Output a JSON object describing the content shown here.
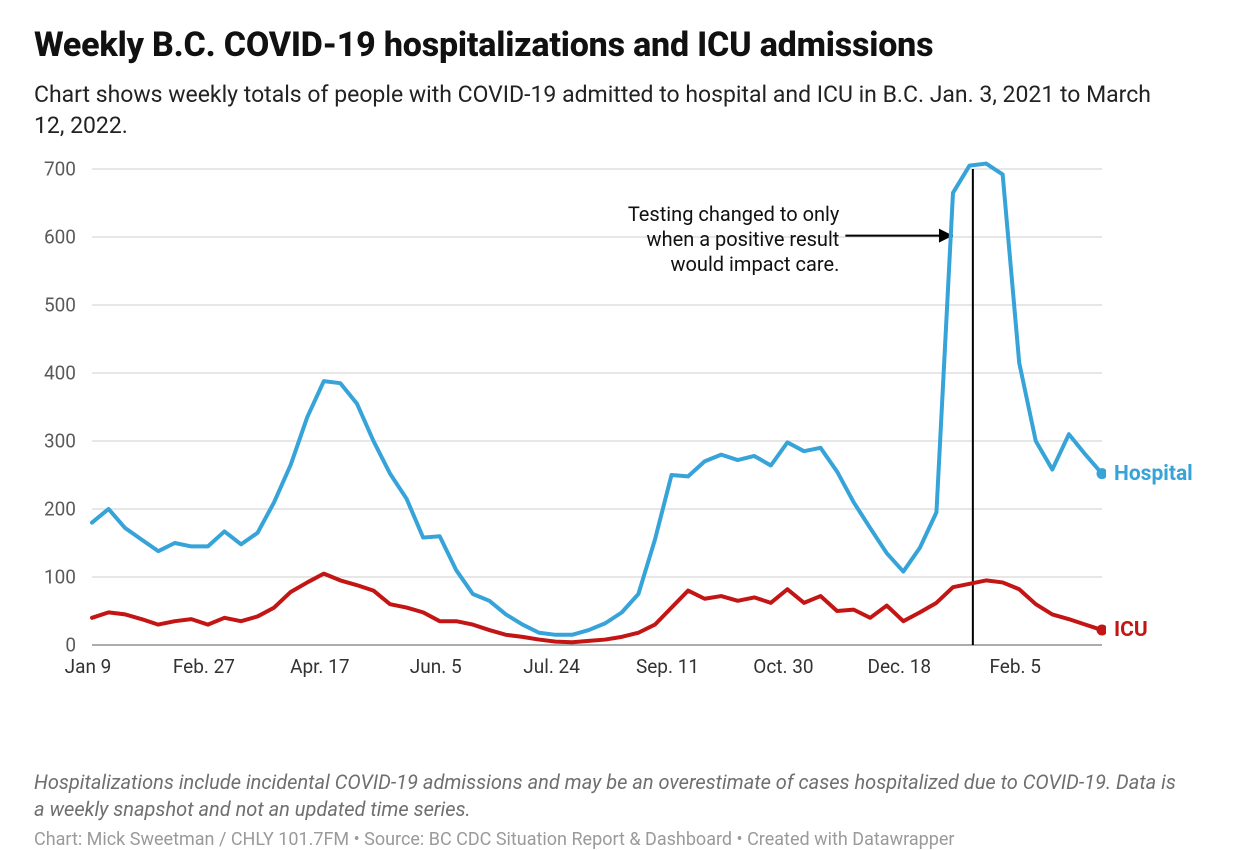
{
  "title": "Weekly B.C. COVID-19 hospitalizations and ICU admissions",
  "subtitle": "Chart shows weekly totals of people with COVID-19 admitted to hospital and ICU in B.C. Jan. 3, 2021 to March 12, 2022.",
  "footnote": "Hospitalizations include incidental COVID-19 admissions and may be an overestimate of cases hospitalized due to COVID-19. Data is a weekly snapshot and not an updated time series.",
  "credit": "Chart: Mick Sweetman / CHLY 101.7FM • Source: BC CDC Situation Report & Dashboard • Created with Datawrapper",
  "chart": {
    "type": "line",
    "background_color": "#ffffff",
    "grid_color": "#cfcfcf",
    "zero_line_color": "#5a5a5a",
    "tick_font_color": "#5a5a5a",
    "y": {
      "min": 0,
      "max": 700,
      "ticks": [
        0,
        100,
        200,
        300,
        400,
        500,
        600,
        700
      ]
    },
    "x": {
      "n_points": 62,
      "tick_positions": [
        0,
        7,
        14,
        21,
        28,
        35,
        42,
        49,
        56
      ],
      "tick_labels": [
        "Jan 9",
        "Feb. 27",
        "Apr. 17",
        "Jun. 5",
        "Jul. 24",
        "Sep. 11",
        "Oct. 30",
        "Dec. 18",
        "Feb. 5"
      ]
    },
    "annotation": {
      "text": "Testing changed to only\nwhen a positive result\nwould impact care.",
      "arrow_from_index": 45.5,
      "arrow_to_index": 52,
      "y_value": 602,
      "vline_index": 53.2
    },
    "series": [
      {
        "name": "Hospital",
        "label": "Hospital",
        "color": "#36a3d9",
        "line_width": 4,
        "end_marker": true,
        "values": [
          180,
          200,
          172,
          155,
          138,
          150,
          145,
          145,
          167,
          148,
          165,
          210,
          265,
          335,
          388,
          385,
          355,
          300,
          252,
          215,
          158,
          160,
          110,
          75,
          65,
          45,
          30,
          18,
          15,
          15,
          22,
          32,
          48,
          75,
          155,
          250,
          248,
          270,
          280,
          272,
          278,
          264,
          298,
          285,
          290,
          255,
          210,
          172,
          135,
          108,
          143,
          195,
          665,
          705,
          708,
          692,
          415,
          300,
          258,
          310,
          280,
          252
        ]
      },
      {
        "name": "ICU",
        "label": "ICU",
        "color": "#c41515",
        "line_width": 4,
        "end_marker": true,
        "values": [
          40,
          48,
          45,
          38,
          30,
          35,
          38,
          30,
          40,
          35,
          42,
          55,
          78,
          92,
          105,
          95,
          88,
          80,
          60,
          55,
          48,
          35,
          35,
          30,
          22,
          15,
          12,
          8,
          5,
          4,
          6,
          8,
          12,
          18,
          30,
          55,
          80,
          68,
          72,
          65,
          70,
          62,
          82,
          62,
          72,
          50,
          52,
          40,
          58,
          35,
          48,
          62,
          85,
          90,
          95,
          92,
          82,
          60,
          45,
          38,
          30,
          22
        ]
      }
    ]
  }
}
